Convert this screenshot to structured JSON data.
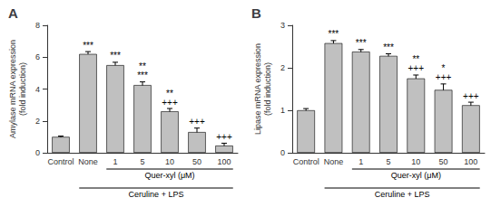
{
  "chart_data": [
    {
      "type": "bar",
      "title": "A",
      "ylabel": "Amylase mRNA expression\n(fold induction)",
      "categories": [
        "Control",
        "None",
        "1",
        "5",
        "10",
        "50",
        "100"
      ],
      "values": [
        1.0,
        6.2,
        5.5,
        4.25,
        2.6,
        1.3,
        0.45
      ],
      "errors": [
        0.05,
        0.15,
        0.18,
        0.2,
        0.18,
        0.25,
        0.15
      ],
      "color": "#c0c0c0",
      "ylim": [
        0,
        8
      ],
      "yticks": [
        0,
        2,
        4,
        6,
        8
      ],
      "grid": false,
      "annotations": [
        {
          "category": "None",
          "lines": [
            "***"
          ]
        },
        {
          "category": "1",
          "lines": [
            "***"
          ]
        },
        {
          "category": "5",
          "lines": [
            "**",
            "***"
          ]
        },
        {
          "category": "10",
          "lines": [
            "**",
            "+++"
          ]
        },
        {
          "category": "50",
          "lines": [
            "+++"
          ]
        },
        {
          "category": "100",
          "lines": [
            "+++"
          ]
        }
      ],
      "groups": [
        {
          "label": "Quer-xyl (μM)",
          "from": "1",
          "to": "100"
        },
        {
          "label": "Ceruline + LPS",
          "from": "None",
          "to": "100"
        }
      ]
    },
    {
      "type": "bar",
      "title": "B",
      "ylabel": "Lipase mRNA expression\n(fold induction)",
      "categories": [
        "Control",
        "None",
        "1",
        "5",
        "10",
        "50",
        "100"
      ],
      "values": [
        1.0,
        2.58,
        2.38,
        2.28,
        1.75,
        1.48,
        1.12
      ],
      "errors": [
        0.04,
        0.06,
        0.05,
        0.05,
        0.08,
        0.14,
        0.07
      ],
      "color": "#c0c0c0",
      "ylim": [
        0,
        3.0
      ],
      "yticks": [
        0,
        1,
        2,
        3
      ],
      "grid": false,
      "annotations": [
        {
          "category": "None",
          "lines": [
            "***"
          ]
        },
        {
          "category": "1",
          "lines": [
            "***"
          ]
        },
        {
          "category": "5",
          "lines": [
            "***"
          ]
        },
        {
          "category": "10",
          "lines": [
            "**",
            "+++"
          ]
        },
        {
          "category": "50",
          "lines": [
            "*",
            "+++"
          ]
        },
        {
          "category": "100",
          "lines": [
            "+++"
          ]
        }
      ],
      "groups": [
        {
          "label": "Quer-xyl (μM)",
          "from": "1",
          "to": "100"
        },
        {
          "label": "Ceruline + LPS",
          "from": "None",
          "to": "100"
        }
      ]
    }
  ]
}
